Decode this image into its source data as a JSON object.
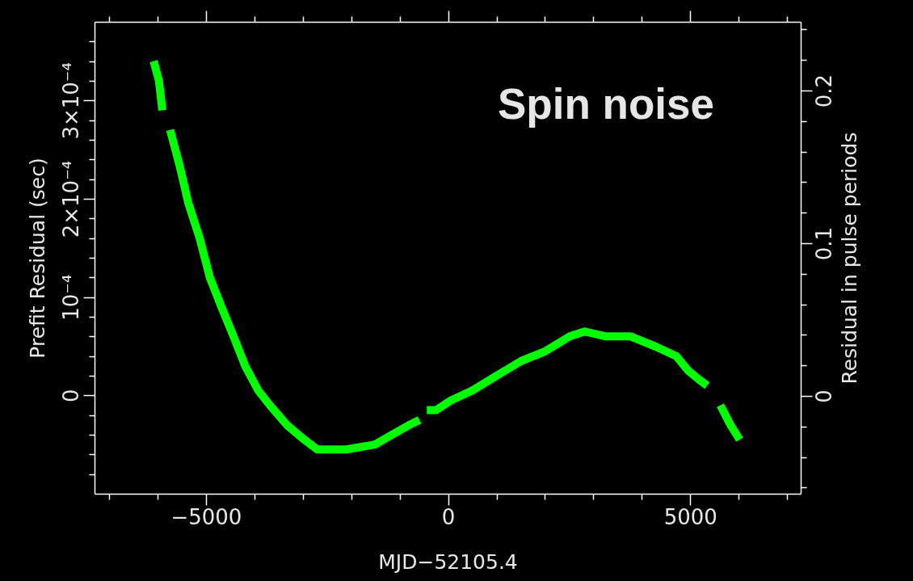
{
  "chart_data": {
    "type": "line",
    "title": "Spin noise",
    "xlabel": "MJD−52105.4",
    "ylabel": "Prefit Residual (sec)",
    "y2label": "Residual in pulse periods",
    "x": [
      -6080,
      -5970,
      -5900,
      -5820,
      -5740,
      -5550,
      -5360,
      -5130,
      -4920,
      -4680,
      -4430,
      -4190,
      -3920,
      -3680,
      -3330,
      -2970,
      -2700,
      -2110,
      -1510,
      -1160,
      -800,
      -590,
      -520,
      -440,
      -250,
      60,
      500,
      1000,
      1510,
      2010,
      2510,
      2820,
      3260,
      3770,
      4270,
      4710,
      4960,
      5210,
      5350,
      5500,
      5620,
      5830,
      6020
    ],
    "series": [
      {
        "color": "#00ff00",
        "values": [
          0.00034,
          0.00032,
          0.00029,
          null,
          0.00027,
          0.000235,
          0.000195,
          0.00016,
          0.00012,
          9e-05,
          6e-05,
          3e-05,
          5e-06,
          -1e-05,
          -3e-05,
          -4.5e-05,
          -5.5e-05,
          -5.5e-05,
          -5e-05,
          -4e-05,
          -3e-05,
          -2.5e-05,
          null,
          -1.5e-05,
          -1.5e-05,
          -5e-06,
          5e-06,
          2e-05,
          3.5e-05,
          4.5e-05,
          6e-05,
          6.5e-05,
          6e-05,
          6e-05,
          5e-05,
          4e-05,
          2.5e-05,
          1.5e-05,
          1e-05,
          null,
          -1e-05,
          -3e-05,
          -4.5e-05
        ]
      }
    ],
    "line_style": "solid",
    "xlim": [
      -7300,
      7280
    ],
    "ylim": [
      -0.0001,
      0.00038
    ],
    "y2lim": [
      -0.064,
      0.245
    ],
    "xticks": [
      {
        "value": -7000,
        "label": null
      },
      {
        "value": -6000,
        "label": null
      },
      {
        "value": -5000,
        "label": "−5000"
      },
      {
        "value": -4000,
        "label": null
      },
      {
        "value": -3000,
        "label": null
      },
      {
        "value": -2000,
        "label": null
      },
      {
        "value": -1000,
        "label": null
      },
      0,
      {
        "value": 1000,
        "label": null
      },
      {
        "value": 2000,
        "label": null
      },
      {
        "value": 3000,
        "label": null
      },
      {
        "value": 4000,
        "label": null
      },
      5000,
      {
        "value": 6000,
        "label": null
      },
      {
        "value": 7000,
        "label": null
      }
    ],
    "yticks": [
      {
        "value": -8e-05,
        "label": null
      },
      {
        "value": -6e-05,
        "label": null
      },
      {
        "value": -4e-05,
        "label": null
      },
      {
        "value": -2e-05,
        "label": null
      },
      0,
      {
        "value": 2e-05,
        "label": null
      },
      {
        "value": 4e-05,
        "label": null
      },
      {
        "value": 6e-05,
        "label": null
      },
      {
        "value": 8e-05,
        "label": null
      },
      {
        "value": 0.0001,
        "label": "10⁻⁴"
      },
      {
        "value": 0.00012,
        "label": null
      },
      {
        "value": 0.00014,
        "label": null
      },
      {
        "value": 0.00016,
        "label": null
      },
      {
        "value": 0.00018,
        "label": null
      },
      {
        "value": 0.0002,
        "label": "2×10⁻⁴"
      },
      {
        "value": 0.00022,
        "label": null
      },
      {
        "value": 0.00024,
        "label": null
      },
      {
        "value": 0.00026,
        "label": null
      },
      {
        "value": 0.00028,
        "label": null
      },
      {
        "value": 0.0003,
        "label": "3×10⁻⁴"
      },
      {
        "value": 0.00032,
        "label": null
      },
      {
        "value": 0.00034,
        "label": null
      },
      {
        "value": 0.00036,
        "label": null
      }
    ],
    "y2ticks": [
      {
        "value": -0.06,
        "label": null
      },
      {
        "value": -0.04,
        "label": null
      },
      {
        "value": -0.02,
        "label": null
      },
      0,
      {
        "value": 0.02,
        "label": null
      },
      {
        "value": 0.04,
        "label": null
      },
      {
        "value": 0.06,
        "label": null
      },
      {
        "value": 0.08,
        "label": null
      },
      0.1,
      {
        "value": 0.12,
        "label": null
      },
      {
        "value": 0.14,
        "label": null
      },
      {
        "value": 0.16,
        "label": null
      },
      {
        "value": 0.18,
        "label": null
      },
      0.2,
      {
        "value": 0.22,
        "label": null
      },
      {
        "value": 0.24,
        "label": null
      }
    ]
  }
}
